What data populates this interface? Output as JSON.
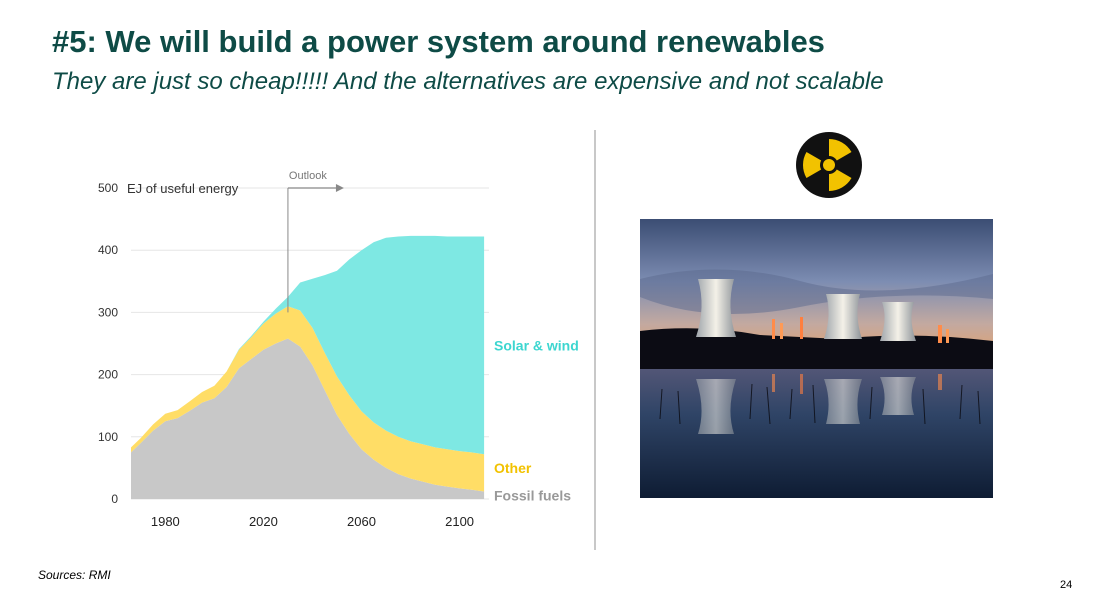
{
  "header": {
    "title": "#5: We will build a power system around renewables",
    "subtitle": "They are just so cheap!!!!! And the alternatives are expensive and not scalable"
  },
  "chart_data": {
    "type": "area",
    "stacked": true,
    "ylabel": "EJ of useful energy",
    "ylim": [
      0,
      500
    ],
    "yticks": [
      0,
      100,
      200,
      300,
      400,
      500
    ],
    "xlim": [
      1966,
      2112
    ],
    "xticks": [
      1980,
      2020,
      2060,
      2100
    ],
    "annotation": {
      "text": "Outlook",
      "x": 2030
    },
    "grid": true,
    "x": [
      1966,
      1970,
      1975,
      1980,
      1985,
      1990,
      1995,
      2000,
      2005,
      2010,
      2015,
      2020,
      2025,
      2030,
      2035,
      2040,
      2045,
      2050,
      2055,
      2060,
      2065,
      2070,
      2075,
      2080,
      2085,
      2090,
      2095,
      2100,
      2105,
      2110
    ],
    "series": [
      {
        "name": "Fossil fuels",
        "color": "#c8c8c8",
        "values": [
          75,
          90,
          110,
          125,
          130,
          142,
          155,
          162,
          180,
          210,
          225,
          240,
          250,
          258,
          245,
          215,
          175,
          135,
          105,
          80,
          63,
          50,
          40,
          33,
          28,
          23,
          20,
          17,
          15,
          12
        ]
      },
      {
        "name": "Other",
        "color": "#ffdd66",
        "values": [
          8,
          8,
          10,
          12,
          13,
          15,
          17,
          20,
          25,
          30,
          35,
          42,
          48,
          52,
          58,
          60,
          60,
          62,
          62,
          61,
          60,
          60,
          60,
          60,
          60,
          60,
          60,
          60,
          60,
          60
        ]
      },
      {
        "name": "Solar & wind",
        "color": "#7ee8e3",
        "values": [
          0,
          0,
          0,
          0,
          0,
          0,
          0,
          0,
          0,
          1,
          2,
          3,
          8,
          15,
          45,
          79,
          125,
          170,
          218,
          259,
          290,
          310,
          322,
          330,
          335,
          340,
          342,
          345,
          347,
          350
        ]
      }
    ]
  },
  "image": {
    "description_icon": "radiation-icon",
    "photo": "nuclear-cooling-towers-photo"
  },
  "footer": {
    "sources": "Sources: RMI",
    "page_number": "24"
  }
}
